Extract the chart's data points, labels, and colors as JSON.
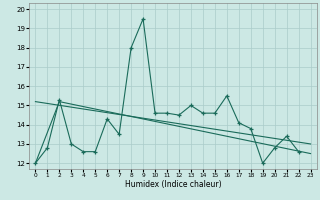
{
  "xlabel": "Humidex (Indice chaleur)",
  "bg_color": "#cce8e4",
  "grid_color": "#aaccca",
  "line_color": "#1a6b5a",
  "xlim": [
    -0.5,
    23.5
  ],
  "ylim": [
    11.7,
    20.3
  ],
  "xticks": [
    0,
    1,
    2,
    3,
    4,
    5,
    6,
    7,
    8,
    9,
    10,
    11,
    12,
    13,
    14,
    15,
    16,
    17,
    18,
    19,
    20,
    21,
    22,
    23
  ],
  "yticks": [
    12,
    13,
    14,
    15,
    16,
    17,
    18,
    19,
    20
  ],
  "line1_x": [
    0,
    1,
    2,
    3,
    4,
    5,
    6,
    7,
    8,
    9,
    10,
    11,
    12,
    13,
    14,
    15,
    16,
    17,
    18,
    19,
    20,
    21,
    22
  ],
  "line1_y": [
    12.0,
    12.8,
    15.3,
    13.0,
    12.6,
    12.6,
    14.3,
    13.5,
    18.0,
    19.5,
    14.6,
    14.6,
    14.5,
    15.0,
    14.6,
    14.6,
    15.5,
    14.1,
    13.8,
    12.0,
    12.8,
    13.4,
    12.6
  ],
  "line2_x": [
    0,
    2,
    23
  ],
  "line2_y": [
    12.0,
    15.2,
    12.5
  ],
  "line3_x": [
    0,
    23
  ],
  "line3_y": [
    15.2,
    13.0
  ]
}
